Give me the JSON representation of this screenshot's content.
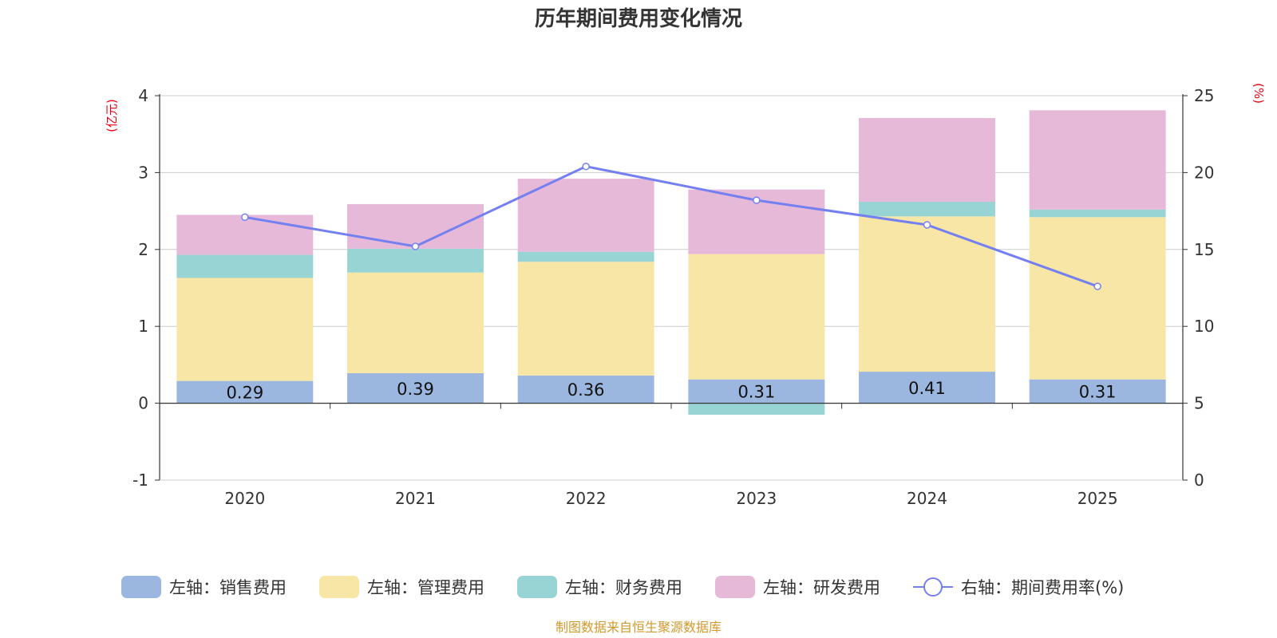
{
  "chart_data": {
    "type": "bar",
    "stacked": true,
    "title": "历年期间费用变化情况",
    "categories": [
      "2020",
      "2021",
      "2022",
      "2023",
      "2024",
      "2025"
    ],
    "series": [
      {
        "name": "左轴：销售费用",
        "axis": "left",
        "color": "#9bb7e0",
        "values": [
          0.29,
          0.39,
          0.36,
          0.31,
          0.41,
          0.31
        ],
        "show_labels": true
      },
      {
        "name": "左轴：管理费用",
        "axis": "left",
        "color": "#f7e6a6",
        "values": [
          1.34,
          1.31,
          1.48,
          1.63,
          2.02,
          2.11
        ]
      },
      {
        "name": "左轴：财务费用",
        "axis": "left",
        "color": "#98d4d4",
        "values": [
          0.3,
          0.31,
          0.13,
          -0.15,
          0.19,
          0.1
        ]
      },
      {
        "name": "左轴：研发费用",
        "axis": "left",
        "color": "#e6b9d9",
        "values": [
          0.52,
          0.58,
          0.95,
          0.84,
          1.09,
          1.29
        ]
      },
      {
        "name": "右轴：期间费用率(%)",
        "axis": "right",
        "type": "line",
        "color": "#7580f0",
        "values": [
          17.1,
          15.2,
          20.4,
          18.2,
          16.6,
          12.6
        ]
      }
    ],
    "yleft": {
      "label": "(亿元)",
      "ylim": [
        -1,
        4
      ],
      "ticks": [
        -1,
        0,
        1,
        2,
        3,
        4
      ]
    },
    "yright": {
      "label": "(%)",
      "ylim": [
        0,
        25
      ],
      "ticks": [
        0,
        5,
        10,
        15,
        20,
        25
      ]
    },
    "grid": true,
    "legend_position": "bottom",
    "source": "制图数据来自恒生聚源数据库"
  }
}
